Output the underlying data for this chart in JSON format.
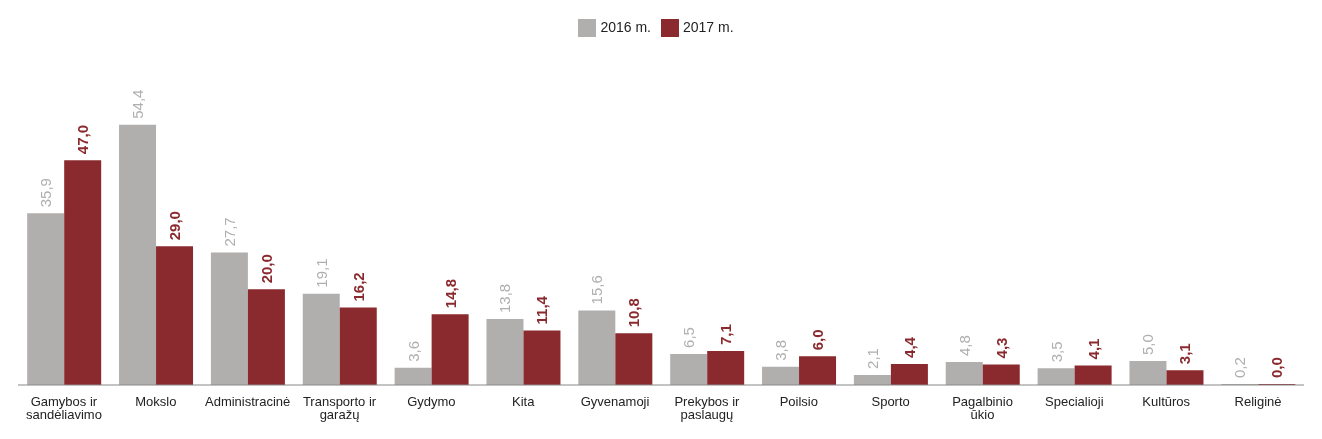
{
  "chart_data": {
    "type": "bar",
    "categories": [
      "Gamybos ir sandėliavimo",
      "Mokslo",
      "Administracinė",
      "Transporto ir garažų",
      "Gydymo",
      "Kita",
      "Gyvenamoji",
      "Prekybos ir paslaugų",
      "Poilsio",
      "Sporto",
      "Pagalbinio ūkio",
      "Specialioji",
      "Kultūros",
      "Religinė"
    ],
    "series": [
      {
        "name": "2016 m.",
        "color": "#b1afae",
        "values": [
          35.9,
          54.4,
          27.7,
          19.1,
          3.6,
          13.8,
          15.6,
          6.5,
          3.8,
          2.1,
          4.8,
          3.5,
          5.0,
          0.2
        ],
        "value_labels": [
          "35,9",
          "54,4",
          "27,7",
          "19,1",
          "3,6",
          "13,8",
          "15,6",
          "6,5",
          "3,8",
          "2,1",
          "4,8",
          "3,5",
          "5,0",
          "0,2"
        ]
      },
      {
        "name": "2017 m.",
        "color": "#8b2a2e",
        "values": [
          47.0,
          29.0,
          20.0,
          16.2,
          14.8,
          11.4,
          10.8,
          7.1,
          6.0,
          4.4,
          4.3,
          4.1,
          3.1,
          0.0
        ],
        "value_labels": [
          "47,0",
          "29,0",
          "20,0",
          "16,2",
          "14,8",
          "11,4",
          "10,8",
          "7,1",
          "6,0",
          "4,4",
          "4,3",
          "4,1",
          "3,1",
          "0,0"
        ]
      }
    ],
    "legend": "top",
    "grid": false
  }
}
